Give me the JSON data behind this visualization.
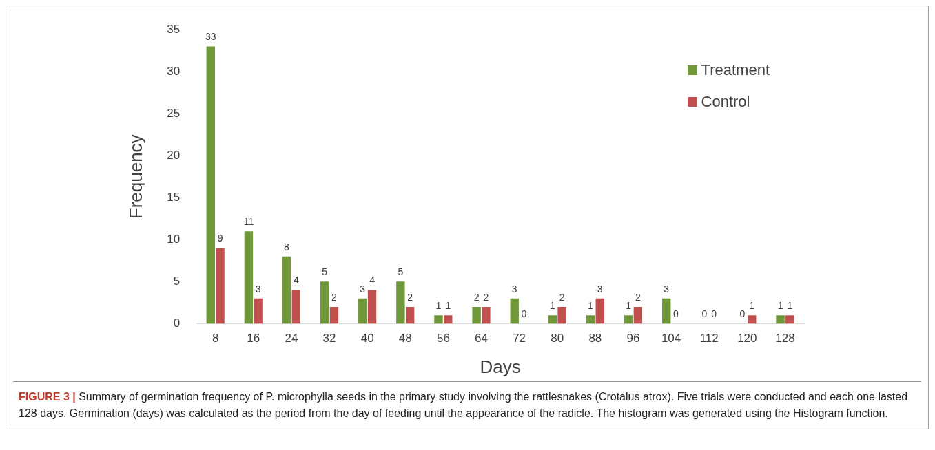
{
  "chart_data": {
    "type": "bar",
    "xlabel": "Days",
    "ylabel": "Frequency",
    "categories": [
      "8",
      "16",
      "24",
      "32",
      "40",
      "48",
      "56",
      "64",
      "72",
      "80",
      "88",
      "96",
      "104",
      "112",
      "120",
      "128"
    ],
    "series": [
      {
        "name": "Treatment",
        "color": "#70983a",
        "values": [
          33,
          11,
          8,
          5,
          3,
          5,
          1,
          2,
          3,
          1,
          1,
          1,
          3,
          0,
          0,
          1
        ]
      },
      {
        "name": "Control",
        "color": "#c0504d",
        "values": [
          9,
          3,
          4,
          2,
          4,
          2,
          1,
          2,
          0,
          2,
          3,
          2,
          0,
          0,
          1,
          1
        ]
      }
    ],
    "ylim": [
      0,
      35
    ],
    "yticks": [
      0,
      5,
      10,
      15,
      20,
      25,
      30,
      35
    ],
    "grid": false,
    "legend": "top right",
    "data_labels": true,
    "annotations": [
      "FIGURE 3 |",
      "Summary of germination frequency of P. microphylla seeds in the primary study involving the rattlesnakes (Crotalus atrox). Five trials were conducted and each one lasted 128 days. Germination (days) was calculated as the period from the day of feeding until the appearance of the radicle. The histogram was generated using the Histogram function."
    ]
  }
}
